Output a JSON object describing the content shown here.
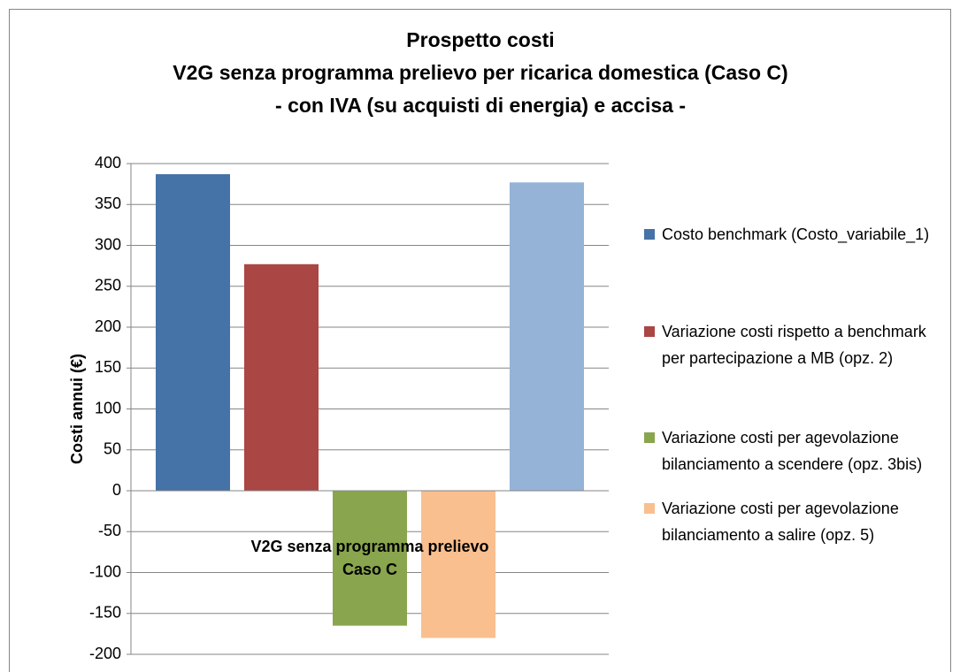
{
  "chart_data": {
    "type": "bar",
    "title": [
      "Prospetto costi",
      "V2G senza programma prelievo per ricarica domestica (Caso C)",
      "- con IVA (su acquisti di energia) e accisa -"
    ],
    "y_label": "Costi annui (€)",
    "categories": [
      "V2G senza programma prelievo\nCaso C"
    ],
    "series": [
      {
        "name": "Costo benchmark (Costo_variabile_1)",
        "color": "#4572a7",
        "values": [
          387
        ]
      },
      {
        "name": "Variazione costi rispetto a benchmark per partecipazione a MB (opz. 2)",
        "color": "#aa4643",
        "values": [
          277
        ]
      },
      {
        "name": "Variazione costi per agevolazione bilanciamento a scendere (opz. 3bis)",
        "color": "#89a54e",
        "values": [
          -165
        ]
      },
      {
        "name": "Variazione costi per agevolazione bilanciamento a salire (opz. 5)",
        "color": "#f9bf8f",
        "values": [
          -180
        ]
      },
      {
        "color": "#95b3d7",
        "values": [
          377
        ]
      }
    ],
    "ylim": [
      -200,
      400
    ],
    "yticks": [
      -200,
      -150,
      -100,
      -50,
      0,
      50,
      100,
      150,
      200,
      250,
      300,
      350,
      400
    ],
    "grid": true
  }
}
